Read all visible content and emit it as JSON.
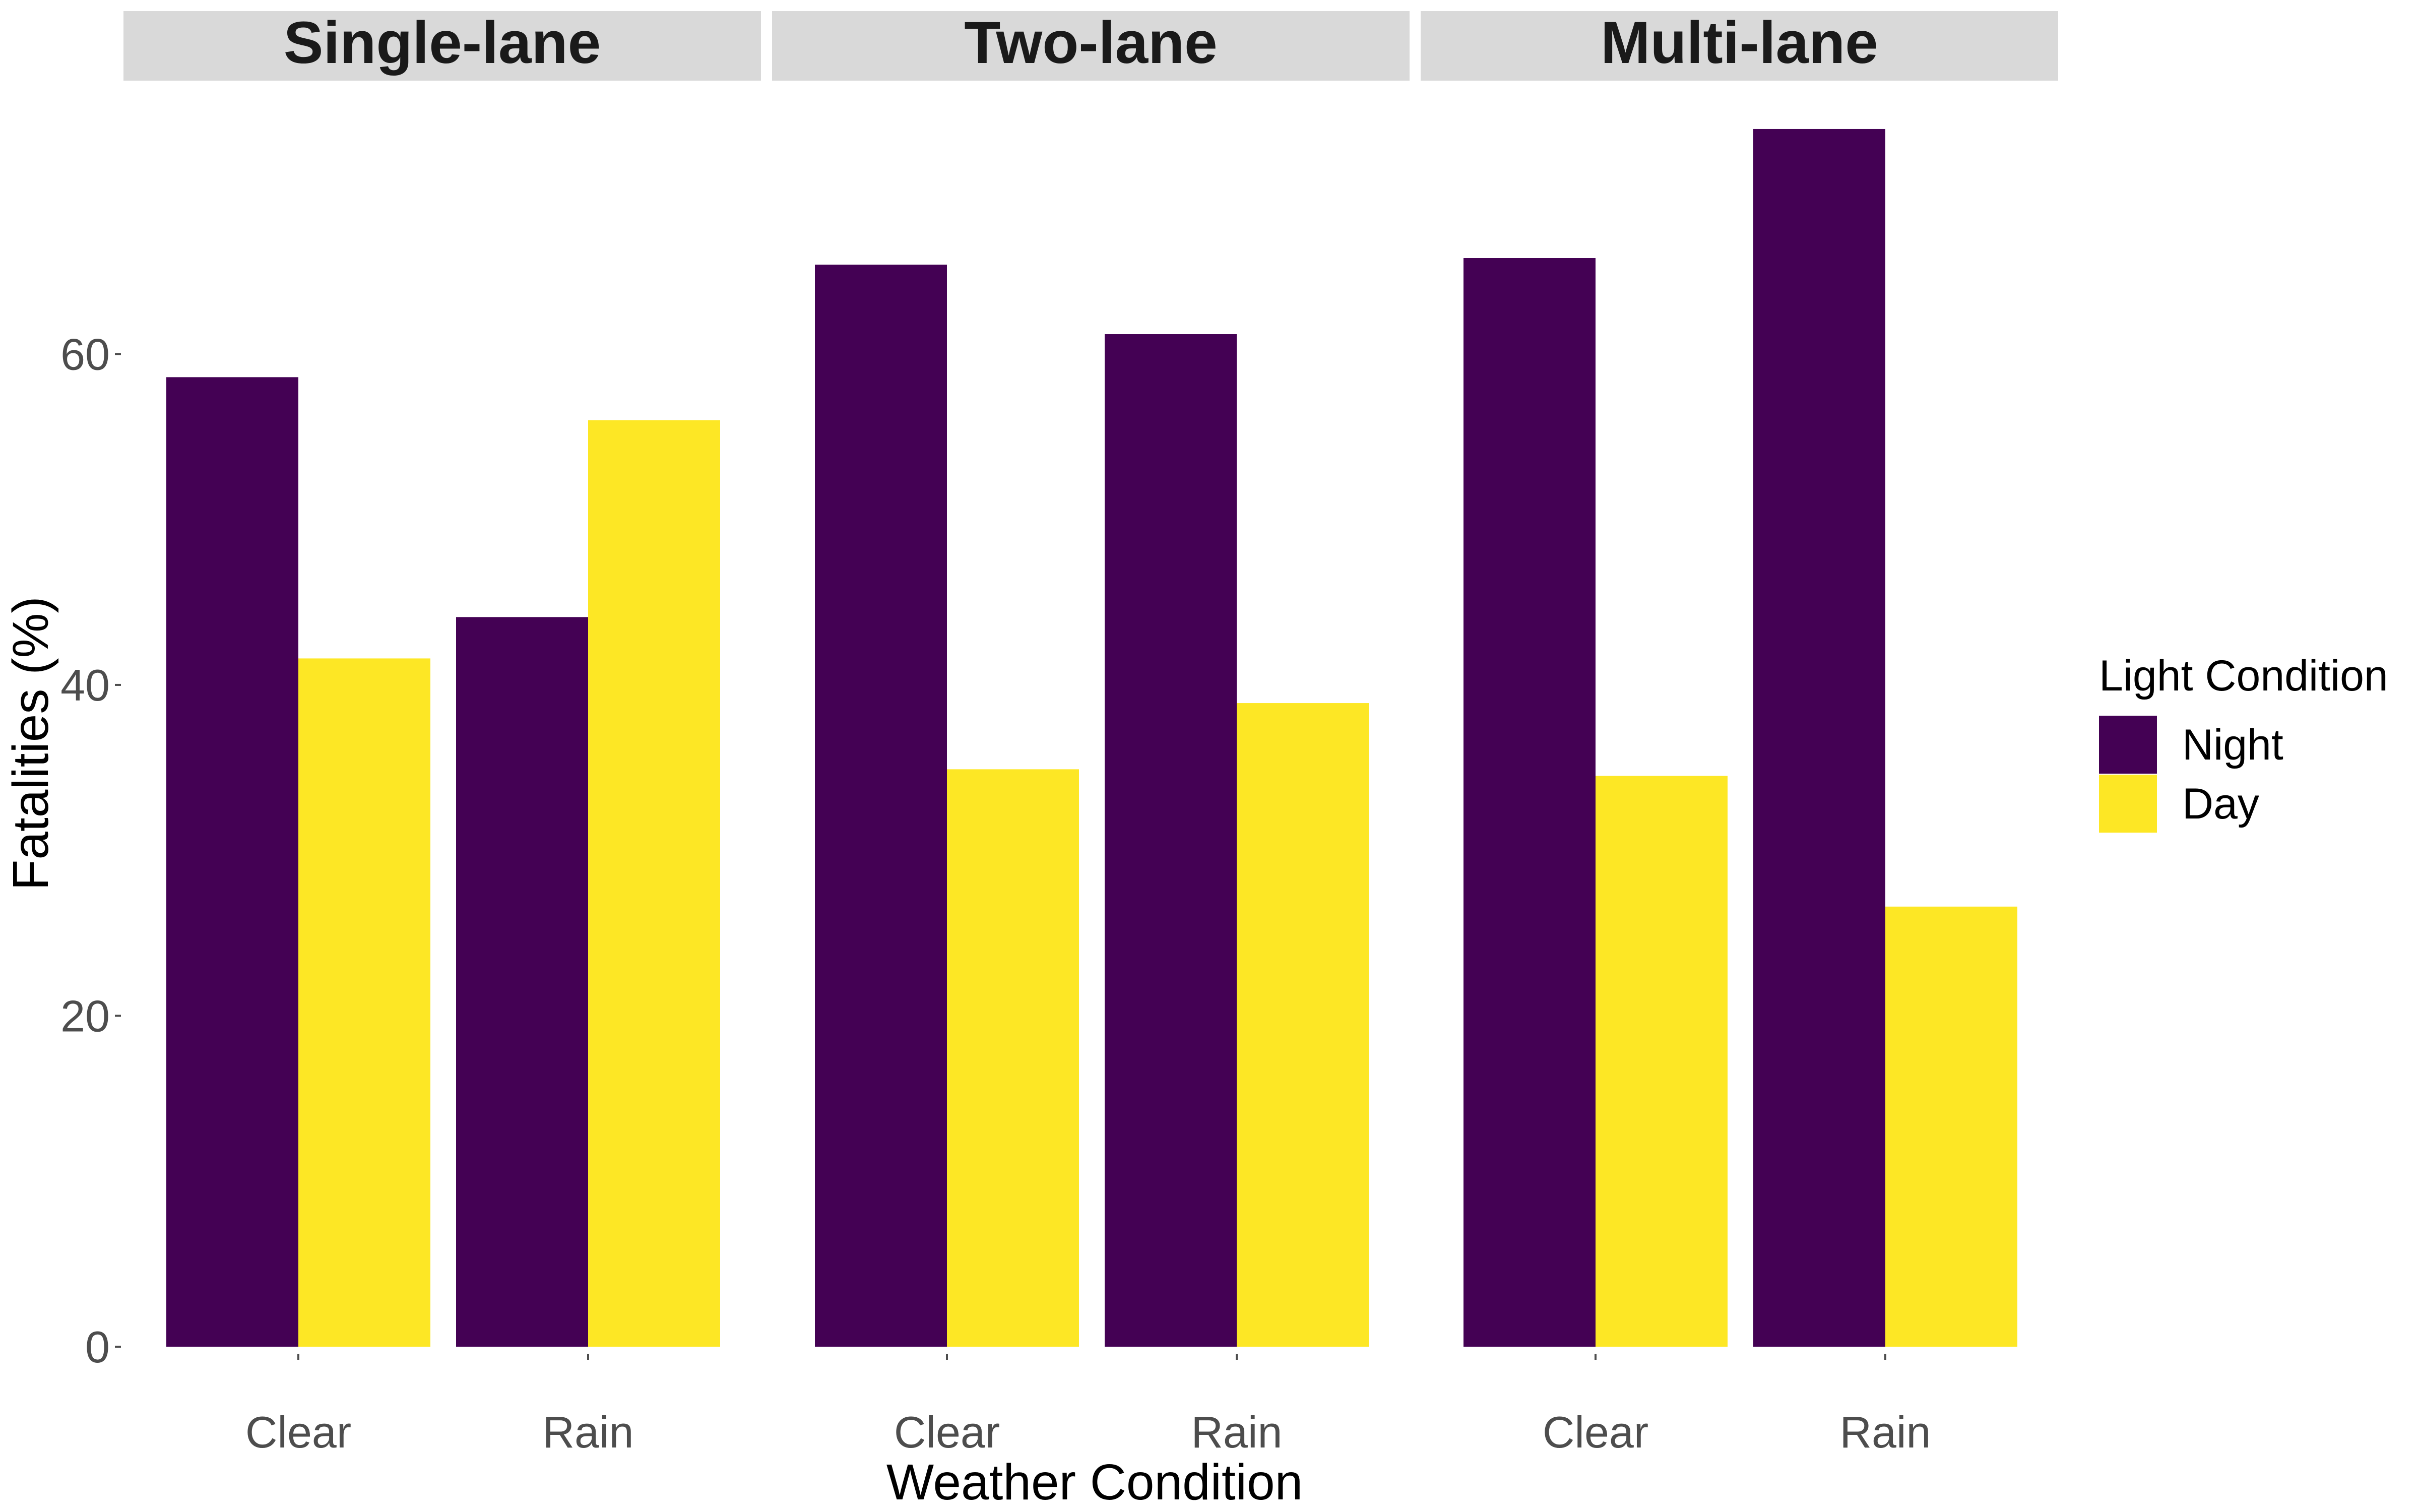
{
  "chart_data": {
    "type": "bar",
    "layout": "faceted grouped bar",
    "facets": [
      {
        "title": "Single-lane",
        "categories": [
          "Clear",
          "Rain"
        ],
        "series": [
          {
            "name": "Night",
            "values": [
              58.6,
              44.1
            ]
          },
          {
            "name": "Day",
            "values": [
              41.6,
              56.0
            ]
          }
        ]
      },
      {
        "title": "Two-lane",
        "categories": [
          "Clear",
          "Rain"
        ],
        "series": [
          {
            "name": "Night",
            "values": [
              65.4,
              61.2
            ]
          },
          {
            "name": "Day",
            "values": [
              34.9,
              38.9
            ]
          }
        ]
      },
      {
        "title": "Multi-lane",
        "categories": [
          "Clear",
          "Rain"
        ],
        "series": [
          {
            "name": "Night",
            "values": [
              65.8,
              73.6
            ]
          },
          {
            "name": "Day",
            "values": [
              34.5,
              26.6
            ]
          }
        ]
      }
    ],
    "xlabel": "Weather Condition",
    "ylabel": "Fatalities (%)",
    "ylim": [
      0,
      75
    ],
    "yticks": [
      0,
      20,
      40,
      60
    ],
    "legend": {
      "title": "Light Condition",
      "entries": [
        "Night",
        "Day"
      ],
      "position": "right"
    },
    "colors": {
      "Night": "#440154",
      "Day": "#FDE725"
    },
    "strip_color": "#D9D9D9",
    "grid": false
  }
}
